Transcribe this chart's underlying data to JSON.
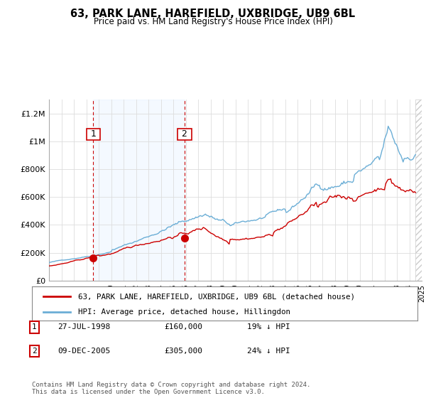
{
  "title": "63, PARK LANE, HAREFIELD, UXBRIDGE, UB9 6BL",
  "subtitle": "Price paid vs. HM Land Registry's House Price Index (HPI)",
  "background_color": "#ffffff",
  "plot_bg_color": "#ffffff",
  "ylim": [
    0,
    1300000
  ],
  "yticks": [
    0,
    200000,
    400000,
    600000,
    800000,
    1000000,
    1200000
  ],
  "ytick_labels": [
    "£0",
    "£200K",
    "£400K",
    "£600K",
    "£800K",
    "£1M",
    "£1.2M"
  ],
  "sale1_x": 1998.57,
  "sale1_y": 160000,
  "sale2_x": 2005.93,
  "sale2_y": 305000,
  "legend_line1": "63, PARK LANE, HAREFIELD, UXBRIDGE, UB9 6BL (detached house)",
  "legend_line2": "HPI: Average price, detached house, Hillingdon",
  "footer": "Contains HM Land Registry data © Crown copyright and database right 2024.\nThis data is licensed under the Open Government Licence v3.0.",
  "hpi_color": "#6baed6",
  "price_color": "#cc0000",
  "vline_color": "#cc0000",
  "shade_color": "#ddeeff",
  "xlim_min": 1995.0,
  "xlim_max": 2025.0,
  "xticks": [
    1995,
    1996,
    1997,
    1998,
    1999,
    2000,
    2001,
    2002,
    2003,
    2004,
    2005,
    2006,
    2007,
    2008,
    2009,
    2010,
    2011,
    2012,
    2013,
    2014,
    2015,
    2016,
    2017,
    2018,
    2019,
    2020,
    2021,
    2022,
    2023,
    2024,
    2025
  ]
}
